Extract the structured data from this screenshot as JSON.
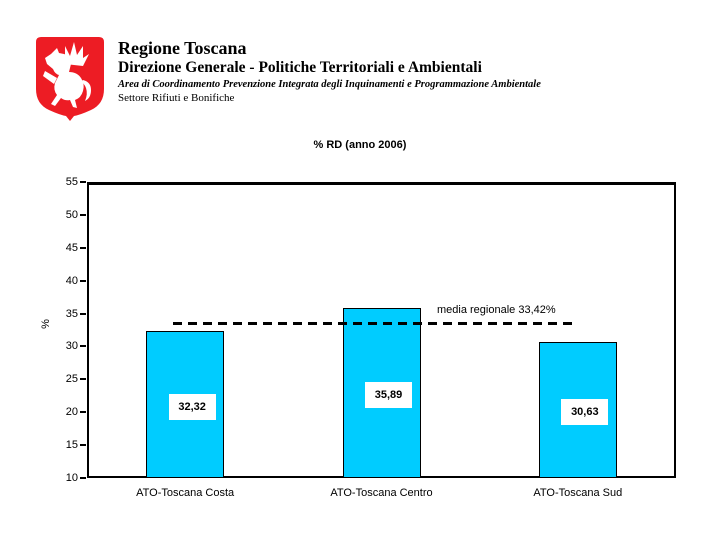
{
  "header": {
    "org": "Regione Toscana",
    "division": "Direzione Generale - Politiche Territoriali e Ambientali",
    "area": "Area di Coordinamento Prevenzione Integrata degli Inquinamenti e Programmazione Ambientale",
    "sector": "Settore Rifiuti e Bonifiche",
    "shield_color": "#ed1c24",
    "pegasus_color": "#ffffff"
  },
  "chart_data": {
    "type": "bar",
    "title": "% RD (anno 2006)",
    "categories": [
      "ATO-Toscana Costa",
      "ATO-Toscana Centro",
      "ATO-Toscana Sud"
    ],
    "values": [
      32.32,
      35.89,
      30.63
    ],
    "value_labels": [
      "32,32",
      "35,89",
      "30,63"
    ],
    "xlabel": "",
    "ylabel": "%",
    "ylim": [
      10,
      55
    ],
    "yticks": [
      55,
      50,
      45,
      40,
      35,
      30,
      25,
      20,
      15,
      10
    ],
    "grid": false,
    "legend": false,
    "bar_color": "#00ccff",
    "bar_border_color": "#000000",
    "reference_line": {
      "value": 33.42,
      "label": "media regionale 33,42%",
      "color": "#000000",
      "style": "dashed"
    }
  }
}
